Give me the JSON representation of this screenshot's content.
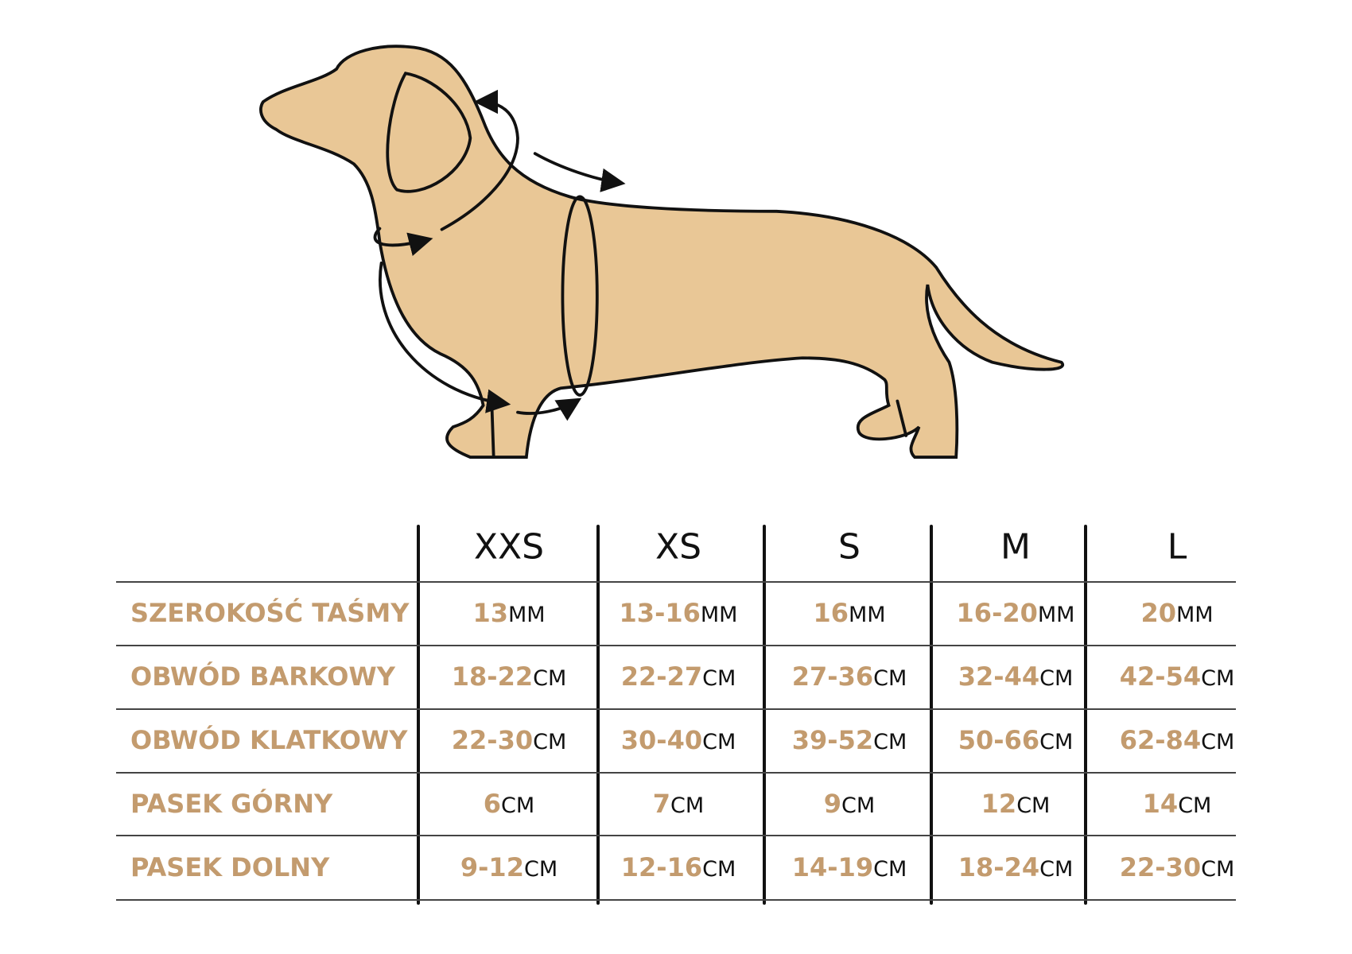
{
  "table": {
    "sizes": [
      "XXS",
      "XS",
      "S",
      "M",
      "L"
    ],
    "rows": [
      {
        "label": "SZEROKOŚĆ TAŚMY",
        "cells": [
          {
            "value": "13",
            "unit": "MM"
          },
          {
            "value": "13-16",
            "unit": "MM"
          },
          {
            "value": "16",
            "unit": "MM"
          },
          {
            "value": "16-20",
            "unit": "MM"
          },
          {
            "value": "20",
            "unit": "MM"
          }
        ]
      },
      {
        "label": "OBWÓD BARKOWY",
        "cells": [
          {
            "value": "18-22",
            "unit": "CM"
          },
          {
            "value": "22-27",
            "unit": "CM"
          },
          {
            "value": "27-36",
            "unit": "CM"
          },
          {
            "value": "32-44",
            "unit": "CM"
          },
          {
            "value": "42-54",
            "unit": "CM"
          }
        ]
      },
      {
        "label": "OBWÓD KLATKOWY",
        "cells": [
          {
            "value": "22-30",
            "unit": "CM"
          },
          {
            "value": "30-40",
            "unit": "CM"
          },
          {
            "value": "39-52",
            "unit": "CM"
          },
          {
            "value": "50-66",
            "unit": "CM"
          },
          {
            "value": "62-84",
            "unit": "CM"
          }
        ]
      },
      {
        "label": "PASEK GÓRNY",
        "cells": [
          {
            "value": "6",
            "unit": "CM"
          },
          {
            "value": "7",
            "unit": "CM"
          },
          {
            "value": "9",
            "unit": "CM"
          },
          {
            "value": "12",
            "unit": "CM"
          },
          {
            "value": "14",
            "unit": "CM"
          }
        ]
      },
      {
        "label": "PASEK DOLNY",
        "cells": [
          {
            "value": "9-12",
            "unit": "CM"
          },
          {
            "value": "12-16",
            "unit": "CM"
          },
          {
            "value": "14-19",
            "unit": "CM"
          },
          {
            "value": "18-24",
            "unit": "CM"
          },
          {
            "value": "22-30",
            "unit": "CM"
          }
        ]
      }
    ]
  }
}
